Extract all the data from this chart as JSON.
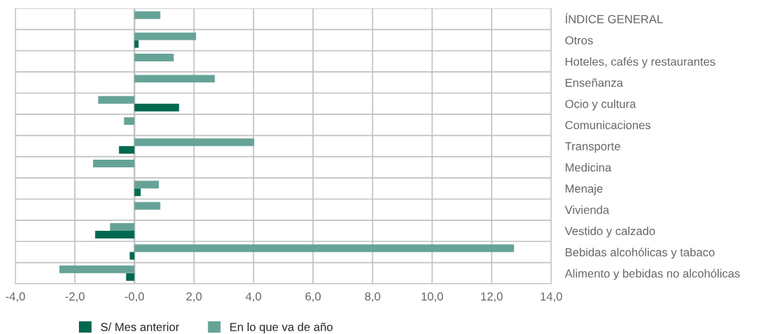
{
  "chart_data": {
    "type": "bar",
    "orientation": "horizontal",
    "categories": [
      "ÍNDICE GENERAL",
      "Otros",
      "Hoteles, cafés y restaurantes",
      "Enseñanza",
      "Ocio y cultura",
      "Comunicaciones",
      "Transporte",
      "Medicina",
      "Menaje",
      "Vivienda",
      "Vestido y calzado",
      "Bebidas alcohólicas y tabaco",
      "Alimento y bebidas no alcohólicas"
    ],
    "series": [
      {
        "name": "S/ Mes anterior",
        "color": "#00694f",
        "values": [
          null,
          0.14,
          null,
          null,
          1.5,
          null,
          -0.52,
          null,
          0.21,
          null,
          -1.32,
          -0.16,
          -0.28
        ]
      },
      {
        "name": "En lo que va de año",
        "color": "#66a397",
        "values": [
          0.87,
          2.07,
          1.32,
          2.7,
          -1.22,
          -0.35,
          4.02,
          -1.39,
          0.82,
          0.87,
          -0.82,
          12.75,
          -2.52
        ]
      }
    ],
    "xlim": [
      -4,
      14
    ],
    "xticks": [
      {
        "value": -4,
        "label": "-4,0"
      },
      {
        "value": -2,
        "label": "-2,0"
      },
      {
        "value": 0,
        "label": "-0,0"
      },
      {
        "value": 2,
        "label": "2,0"
      },
      {
        "value": 4,
        "label": "4,0"
      },
      {
        "value": 6,
        "label": "6,0"
      },
      {
        "value": 8,
        "label": "8,0"
      },
      {
        "value": 10,
        "label": "10,0"
      },
      {
        "value": 12,
        "label": "12,0"
      },
      {
        "value": 14,
        "label": "14,0"
      }
    ],
    "grid": true,
    "legend": "bottom"
  }
}
